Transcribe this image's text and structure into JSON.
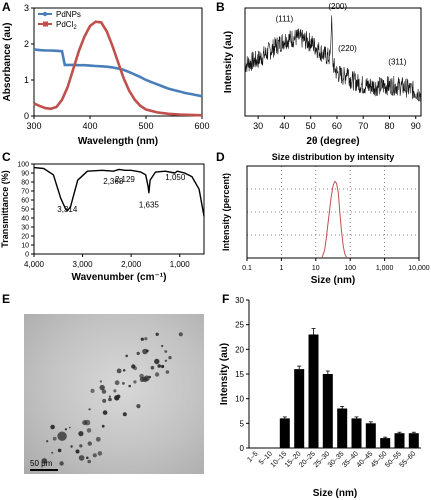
{
  "panels": {
    "a": {
      "label": "A"
    },
    "b": {
      "label": "B"
    },
    "c": {
      "label": "C"
    },
    "d": {
      "label": "D"
    },
    "e": {
      "label": "E",
      "scale_bar": "50 μm"
    },
    "f": {
      "label": "F"
    }
  },
  "colors": {
    "pdnps": "#4a7ebb",
    "pdcl2": "#c0504d",
    "dls": "#d9a0a0",
    "bar": "#000000",
    "grid_dot": "#666666"
  },
  "chart_data": [
    {
      "id": "a",
      "type": "line",
      "title": "",
      "xlabel": "Wavelength (nm)",
      "ylabel": "Absorbance (au)",
      "xlim": [
        300,
        600
      ],
      "ylim": [
        0,
        3
      ],
      "x_ticks": [
        300,
        400,
        500,
        600
      ],
      "y_ticks": [
        0,
        1,
        2,
        3
      ],
      "legend": "top-left",
      "series": [
        {
          "name": "PdNPs",
          "x": [
            300,
            310,
            320,
            330,
            340,
            350,
            355,
            360,
            370,
            380,
            390,
            400,
            410,
            420,
            430,
            440,
            450,
            460,
            470,
            480,
            490,
            500,
            510,
            520,
            530,
            540,
            550,
            560,
            570,
            580,
            590,
            600
          ],
          "y": [
            1.85,
            1.83,
            1.82,
            1.82,
            1.81,
            1.8,
            1.42,
            1.42,
            1.42,
            1.41,
            1.41,
            1.4,
            1.39,
            1.38,
            1.37,
            1.35,
            1.32,
            1.28,
            1.22,
            1.15,
            1.08,
            1.0,
            0.94,
            0.88,
            0.82,
            0.76,
            0.72,
            0.68,
            0.64,
            0.61,
            0.58,
            0.55
          ]
        },
        {
          "name": "PdCl2",
          "legend_main": "PdCl",
          "legend_sub": "2",
          "x": [
            300,
            310,
            320,
            330,
            340,
            350,
            360,
            370,
            380,
            390,
            400,
            410,
            420,
            430,
            440,
            450,
            460,
            470,
            480,
            490,
            500,
            520,
            540,
            560,
            580,
            600
          ],
          "y": [
            0.35,
            0.28,
            0.22,
            0.2,
            0.25,
            0.45,
            0.8,
            1.3,
            1.8,
            2.2,
            2.5,
            2.62,
            2.6,
            2.35,
            1.95,
            1.5,
            1.05,
            0.7,
            0.45,
            0.28,
            0.18,
            0.1,
            0.06,
            0.04,
            0.03,
            0.02
          ]
        }
      ]
    },
    {
      "id": "b",
      "type": "line",
      "title": "",
      "xlabel": "2θ (degree)",
      "ylabel": "Intensity (au)",
      "xlim": [
        25,
        92
      ],
      "x_ticks": [
        30,
        40,
        50,
        60,
        70,
        80,
        90
      ],
      "annotations": [
        {
          "text": "(111)",
          "x": 40
        },
        {
          "text": "(200)",
          "x": 58
        },
        {
          "text": "(220)",
          "x": 64
        },
        {
          "text": "(311)",
          "x": 83
        }
      ],
      "series": [
        {
          "name": "",
          "x": [
            25,
            30,
            35,
            40,
            45,
            50,
            55,
            57.5,
            58,
            58.5,
            60,
            63,
            64,
            65,
            70,
            75,
            80,
            85,
            90,
            92
          ],
          "y": [
            0.62,
            0.66,
            0.74,
            0.82,
            0.84,
            0.8,
            0.7,
            0.67,
            1.02,
            0.62,
            0.55,
            0.52,
            0.58,
            0.5,
            0.45,
            0.44,
            0.45,
            0.44,
            0.4,
            0.38
          ]
        }
      ]
    },
    {
      "id": "c",
      "type": "line",
      "title": "",
      "xlabel": "Wavenumber (cm⁻¹)",
      "ylabel": "Transmittance (%)",
      "xlim": [
        4000,
        500
      ],
      "ylim": [
        0,
        100
      ],
      "x_ticks": [
        4000,
        3000,
        2000,
        1000
      ],
      "x_tick_labels": [
        "4,000",
        "3,000",
        "2,000",
        "1,000"
      ],
      "y_ticks": [
        0,
        10,
        20,
        30,
        40,
        50,
        60,
        70,
        80,
        90,
        100
      ],
      "annotations": [
        {
          "text": "3,314",
          "x": 3314
        },
        {
          "text": "2,368",
          "x": 2368
        },
        {
          "text": "2,129",
          "x": 2129
        },
        {
          "text": "1,635",
          "x": 1635
        },
        {
          "text": "1,050",
          "x": 1050
        }
      ],
      "series": [
        {
          "name": "",
          "x": [
            4000,
            3800,
            3600,
            3450,
            3350,
            3314,
            3250,
            3100,
            2900,
            2600,
            2368,
            2250,
            2129,
            2000,
            1800,
            1700,
            1650,
            1635,
            1610,
            1500,
            1300,
            1100,
            1050,
            900,
            750,
            600,
            500
          ],
          "y": [
            96,
            95,
            88,
            62,
            50,
            48,
            52,
            82,
            92,
            93,
            92,
            94,
            93,
            93,
            91,
            88,
            75,
            68,
            82,
            91,
            92,
            90,
            92,
            90,
            86,
            72,
            42
          ]
        }
      ]
    },
    {
      "id": "d",
      "type": "line",
      "title": "Size distribution by intensity",
      "xlabel": "Size (nm)",
      "ylabel": "Intensity (percent)",
      "x_scale": "log",
      "xlim": [
        0.1,
        10000
      ],
      "x_ticks": [
        0.1,
        1,
        10,
        100,
        1000,
        10000
      ],
      "x_tick_labels": [
        "0.1",
        "1",
        "10",
        "100",
        "1,000",
        "10,000"
      ],
      "grid": "dotted",
      "series": [
        {
          "name": "",
          "x": [
            15,
            18,
            20,
            24,
            28,
            32,
            36,
            40,
            45,
            50,
            56,
            63,
            70,
            80
          ],
          "y": [
            0,
            2,
            5,
            11,
            16,
            19,
            20,
            19.5,
            17,
            12,
            7,
            3,
            1,
            0
          ]
        }
      ]
    },
    {
      "id": "f",
      "type": "bar",
      "title": "",
      "xlabel": "Size (nm)",
      "ylabel": "Intensity (au)",
      "ylim": [
        0,
        30
      ],
      "y_ticks": [
        0,
        5,
        10,
        15,
        20,
        25,
        30
      ],
      "categories": [
        "1–5",
        "5–10",
        "10–15",
        "15–20",
        "20–25",
        "25–30",
        "30–35",
        "35–40",
        "40–45",
        "45–50",
        "50–55",
        "55–60"
      ],
      "values": [
        0,
        0,
        6,
        16,
        23,
        15,
        8,
        6,
        5,
        2,
        3,
        3
      ],
      "errors": [
        0,
        0,
        0.3,
        0.6,
        1.2,
        0.6,
        0.4,
        0.3,
        0.3,
        0.2,
        0.2,
        0.2
      ]
    }
  ]
}
